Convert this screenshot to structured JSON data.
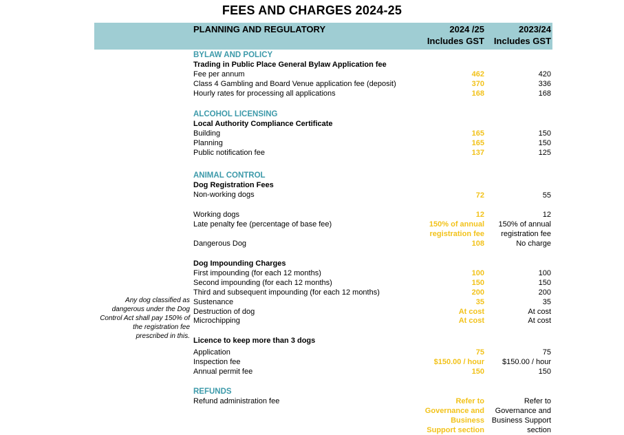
{
  "title": "FEES AND CHARGES 2024-25",
  "header": {
    "section": "PLANNING AND REGULATORY",
    "col1_l1": "2024 /25",
    "col1_l2": "Includes GST",
    "col2_l1": "2023/24",
    "col2_l2": "Includes GST"
  },
  "side_note": {
    "l1": "Any dog classified as",
    "l2": "dangerous under the Dog",
    "l3": "Control Act shall pay 150% of",
    "l4": "the registration fee",
    "l5": "prescribed in this."
  },
  "rows": [
    {
      "label": "BYLAW AND POLICY"
    },
    {
      "label": "Trading in Public Place General Bylaw Application fee"
    },
    {
      "label": "Fee per annum",
      "v1": "462",
      "v2": "420"
    },
    {
      "label": "Class 4 Gambling and Board Venue application fee (deposit)",
      "v1": "370",
      "v2": "336"
    },
    {
      "label": "Hourly rates for processing all applications",
      "v1": "168",
      "v2": "168"
    },
    {
      "label": "ALCOHOL LICENSING"
    },
    {
      "label": "Local Authority Compliance Certificate"
    },
    {
      "label": "Building",
      "v1": "165",
      "v2": "150"
    },
    {
      "label": "Planning",
      "v1": "165",
      "v2": "150"
    },
    {
      "label": "Public notification fee",
      "v1": "137",
      "v2": "125"
    },
    {
      "label": "ANIMAL CONTROL"
    },
    {
      "label": "Dog Registration Fees"
    },
    {
      "label": "Non-working dogs",
      "v1": "72",
      "v2": "55"
    },
    {
      "label": "Working dogs",
      "v1": "12",
      "v2": "12"
    },
    {
      "label": "Late penalty fee (percentage of base fee)",
      "v1": "150% of annual",
      "v1b": "registration fee",
      "v2": "150% of annual",
      "v2b": "registration fee"
    },
    {
      "label": "Dangerous Dog",
      "v1": "108",
      "v2": "No charge"
    },
    {
      "label": "Dog Impounding Charges"
    },
    {
      "label": "First impounding (for each 12 months)",
      "v1": "100",
      "v2": "100"
    },
    {
      "label": "Second impounding (for each 12 months)",
      "v1": "150",
      "v2": "150"
    },
    {
      "label": "Third and subsequent impounding (for each 12 months)",
      "v1": "200",
      "v2": "200"
    },
    {
      "label": "Sustenance",
      "v1": "35",
      "v2": "35"
    },
    {
      "label": "Destruction of dog",
      "v1": "At cost",
      "v2": "At cost"
    },
    {
      "label": "Microchipping",
      "v1": "At cost",
      "v2": "At cost"
    },
    {
      "label": "Licence to keep more than 3 dogs"
    },
    {
      "label": "Application",
      "v1": "75",
      "v2": "75"
    },
    {
      "label": "Inspection fee",
      "v1": "$150.00 / hour",
      "v2": "$150.00 / hour"
    },
    {
      "label": "Annual permit fee",
      "v1": "150",
      "v2": "150"
    },
    {
      "label": "REFUNDS"
    },
    {
      "label": "Refund administration fee",
      "v1": "Refer to",
      "v1b": "Governance and",
      "v1c": "Business",
      "v1d": "Support section",
      "v2": "Refer to",
      "v2b": "Governance and",
      "v2c": "Business Support",
      "v2d": "section"
    }
  ]
}
